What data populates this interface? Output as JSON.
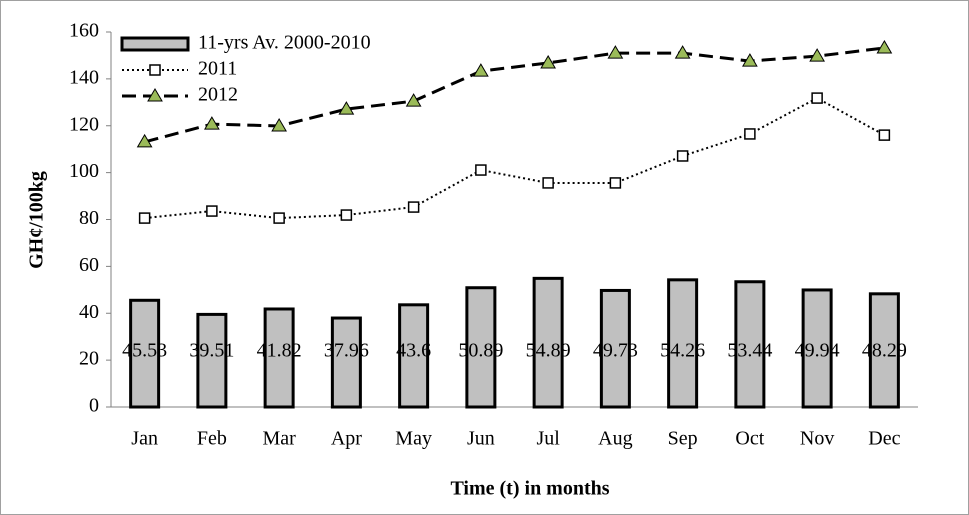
{
  "chart_data": {
    "type": "combo",
    "y_label": "GH¢/100kg",
    "x_label": "Time (t) in months",
    "categories": [
      "Jan",
      "Feb",
      "Mar",
      "Apr",
      "May",
      "Jun",
      "Jul",
      "Aug",
      "Sep",
      "Oct",
      "Nov",
      "Dec"
    ],
    "series": [
      {
        "name": "11-yrs Av. 2000-2010",
        "type": "bar",
        "color": "#c0c0c0",
        "values": [
          45.53,
          39.51,
          41.82,
          37.96,
          43.6,
          50.89,
          54.89,
          49.73,
          54.26,
          53.44,
          49.94,
          48.29
        ]
      },
      {
        "name": "2011",
        "type": "line",
        "color": "#000000",
        "line_style": "dotted",
        "marker": "square",
        "marker_color": "#ffffff",
        "values": [
          80.6,
          83.6,
          80.6,
          81.9,
          85.3,
          101.1,
          95.6,
          95.6,
          107.1,
          116.5,
          131.8,
          116.0
        ]
      },
      {
        "name": "2012",
        "type": "line",
        "color": "#000000",
        "line_style": "dashed",
        "marker": "triangle",
        "marker_color": "#9bbb59",
        "values": [
          113.1,
          120.7,
          119.9,
          127.1,
          130.5,
          143.3,
          146.8,
          151.0,
          151.0,
          147.6,
          149.7,
          153.2
        ]
      }
    ],
    "ylim": [
      0,
      160
    ],
    "yticks": [
      0,
      20,
      40,
      60,
      80,
      100,
      120,
      140,
      160
    ],
    "legend": "top-left",
    "grid": false
  }
}
